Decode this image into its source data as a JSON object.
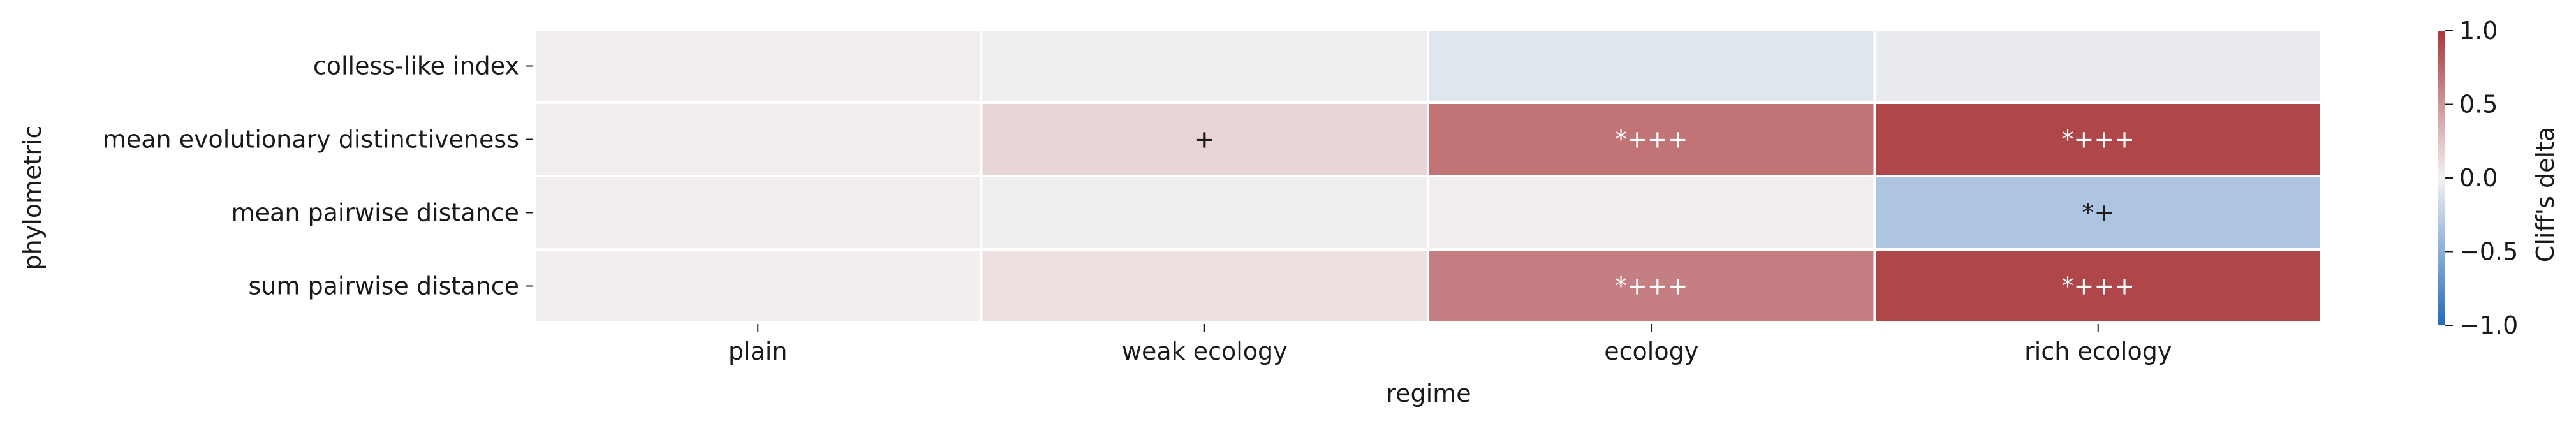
{
  "chart_data": {
    "type": "heatmap",
    "xlabel": "regime",
    "ylabel": "phylometric",
    "x_categories": [
      "plain",
      "weak ecology",
      "ecology",
      "rich ecology"
    ],
    "y_categories": [
      "colless-like index",
      "mean evolutionary distinctiveness",
      "mean pairwise distance",
      "sum pairwise distance"
    ],
    "values": [
      [
        0.02,
        -0.03,
        -0.09,
        -0.05
      ],
      [
        0.02,
        0.15,
        0.68,
        0.92
      ],
      [
        0.02,
        -0.03,
        0.03,
        -0.33
      ],
      [
        0.02,
        0.1,
        0.62,
        0.92
      ]
    ],
    "annotations": [
      [
        "",
        "",
        "",
        ""
      ],
      [
        "",
        "+",
        "*+++",
        "*+++"
      ],
      [
        "",
        "",
        "",
        "*+"
      ],
      [
        "",
        "",
        "*+++",
        "*+++"
      ]
    ],
    "colorbar": {
      "label": "Cliff's delta",
      "range": [
        -1.0,
        1.0
      ],
      "ticks": [
        "1.0",
        "0.5",
        "0.0",
        "−0.5",
        "−1.0"
      ],
      "tick_values": [
        1.0,
        0.5,
        0.0,
        -0.5,
        -1.0
      ],
      "colormap": "vlag",
      "color_low": "#2369bd",
      "color_mid": "#f3f2f2",
      "color_high": "#a9373b"
    },
    "grid": false,
    "legend": "colorbar-right"
  }
}
